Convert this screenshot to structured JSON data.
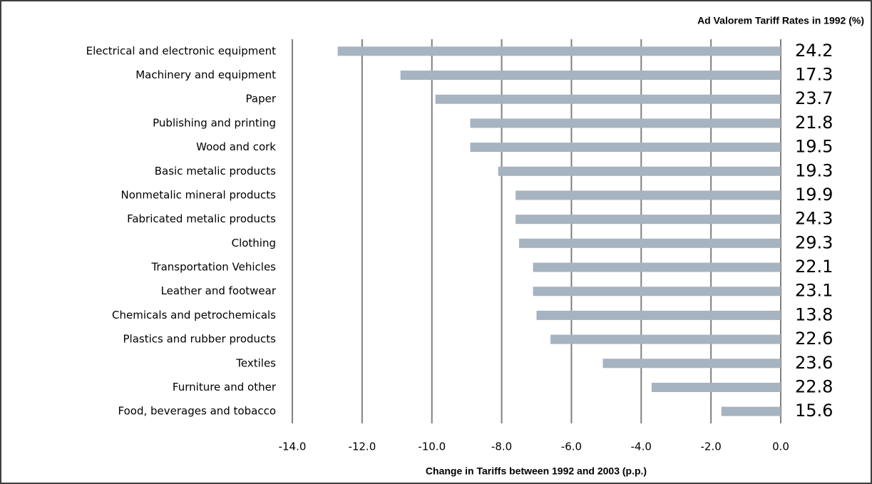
{
  "chart_data": {
    "type": "barh",
    "categories": [
      "Electrical and electronic equipment",
      "Machinery and equipment",
      "Paper",
      "Publishing and printing",
      "Wood and cork",
      "Basic metalic products",
      "Nonmetalic mineral products",
      "Fabricated metalic products",
      "Clothing",
      "Transportation Vehicles",
      "Leather and footwear",
      "Chemicals and petrochemicals",
      "Plastics and rubber products",
      "Textiles",
      "Furniture and other",
      "Food, beverages and tobacco"
    ],
    "values": [
      -12.7,
      -10.9,
      -9.9,
      -8.9,
      -8.9,
      -8.1,
      -7.6,
      -7.6,
      -7.5,
      -7.1,
      -7.1,
      -7.0,
      -6.6,
      -5.1,
      -3.7,
      -1.7
    ],
    "color": "#a6b3c1",
    "xlabel": "Change in Tariffs between 1992 and 2003 (p.p.)",
    "xlim": [
      -14,
      0
    ],
    "xticks": [
      {
        "value": -14,
        "label": "-14.0"
      },
      {
        "value": -12,
        "label": "-12.0"
      },
      {
        "value": -10,
        "label": "-10.0"
      },
      {
        "value": -8,
        "label": "-8.0"
      },
      {
        "value": -6,
        "label": "-6.0"
      },
      {
        "value": -4,
        "label": "-4.0"
      },
      {
        "value": -2,
        "label": "-2.0"
      },
      {
        "value": 0,
        "label": "0.0"
      }
    ],
    "grid": true,
    "side_labels": {
      "title": "Ad Valorem Tariff Rates in 1992 (%)",
      "values": [
        24.2,
        17.3,
        23.7,
        21.8,
        19.5,
        19.3,
        19.9,
        24.3,
        29.3,
        22.1,
        23.1,
        13.8,
        22.6,
        23.6,
        22.8,
        15.6
      ]
    }
  }
}
